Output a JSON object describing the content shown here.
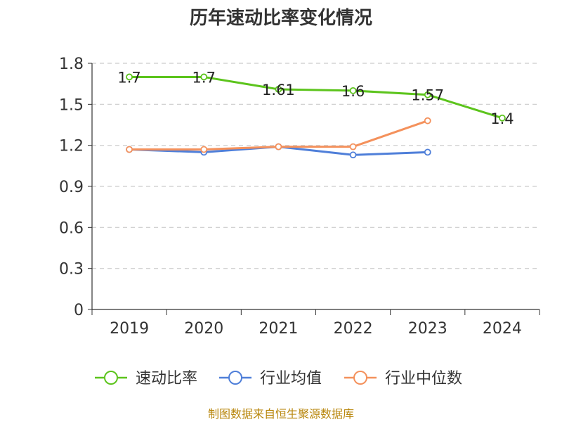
{
  "chart_data": {
    "type": "line",
    "title": "历年速动比率变化情况",
    "categories": [
      "2019",
      "2020",
      "2021",
      "2022",
      "2023",
      "2024"
    ],
    "y_ticks": [
      "0",
      "0.3",
      "0.6",
      "0.9",
      "1.2",
      "1.5",
      "1.8"
    ],
    "ylim": [
      0,
      1.8
    ],
    "grid": "horizontal dashed",
    "legend_position": "bottom",
    "series": [
      {
        "name": "速动比率",
        "color": "#5cc41c",
        "values": [
          1.7,
          1.7,
          1.61,
          1.6,
          1.57,
          1.4
        ],
        "labels": [
          "1.7",
          "1.7",
          "1.61",
          "1.6",
          "1.57",
          "1.4"
        ]
      },
      {
        "name": "行业均值",
        "color": "#4f7fd9",
        "values": [
          1.17,
          1.15,
          1.19,
          1.13,
          1.15,
          null
        ]
      },
      {
        "name": "行业中位数",
        "color": "#f4915c",
        "values": [
          1.17,
          1.17,
          1.19,
          1.19,
          1.38,
          null
        ]
      }
    ],
    "source": "制图数据来自恒生聚源数据库"
  }
}
